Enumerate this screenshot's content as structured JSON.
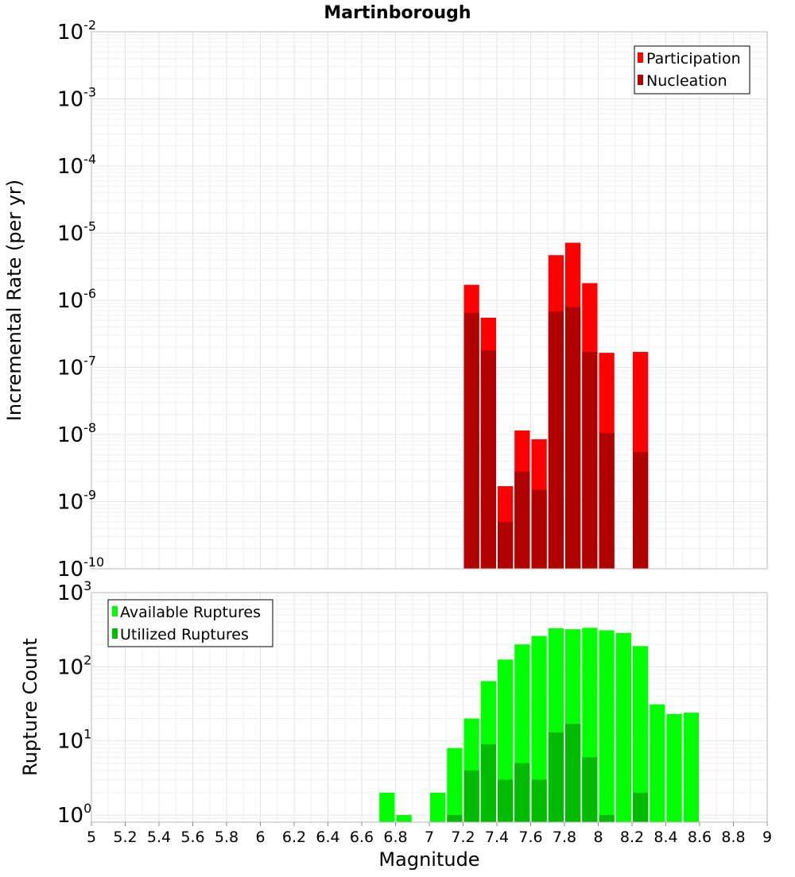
{
  "chart_data": [
    {
      "type": "bar",
      "title": "Martinborough",
      "ylabel": "Incremental Rate (per yr)",
      "xlabel": "",
      "xlim": [
        5,
        9
      ],
      "ylim": [
        1e-10,
        0.01
      ],
      "yscale": "log",
      "grid": true,
      "legend_position": "top-right",
      "colors": {
        "Participation": "#ff0000",
        "Nucleation": "#b00000"
      },
      "x": [
        7.25,
        7.35,
        7.45,
        7.55,
        7.65,
        7.75,
        7.85,
        7.95,
        8.05,
        8.25
      ],
      "series": [
        {
          "name": "Participation",
          "values": [
            1.7e-06,
            5.5e-07,
            1.7e-09,
            1.15e-08,
            8.5e-09,
            4.7e-06,
            7.2e-06,
            1.8e-06,
            1.65e-07,
            1.7e-07
          ]
        },
        {
          "name": "Nucleation",
          "values": [
            6.5e-07,
            1.8e-07,
            5e-10,
            2.8e-09,
            1.5e-09,
            6.8e-07,
            8e-07,
            1.7e-07,
            1.05e-08,
            5.5e-09
          ]
        }
      ],
      "y_ticks": [
        {
          "base": "10",
          "exp": "-2"
        },
        {
          "base": "10",
          "exp": "-3"
        },
        {
          "base": "10",
          "exp": "-4"
        },
        {
          "base": "10",
          "exp": "-5"
        },
        {
          "base": "10",
          "exp": "-6"
        },
        {
          "base": "10",
          "exp": "-7"
        },
        {
          "base": "10",
          "exp": "-8"
        },
        {
          "base": "10",
          "exp": "-9"
        },
        {
          "base": "10",
          "exp": "-10"
        }
      ]
    },
    {
      "type": "bar",
      "title": "",
      "ylabel": "Rupture Count",
      "xlabel": "Magnitude",
      "xlim": [
        5,
        9
      ],
      "ylim": [
        0.8,
        1000
      ],
      "yscale": "log",
      "grid": true,
      "legend_position": "top-left",
      "colors": {
        "Available Ruptures": "#00ff00",
        "Utilized Ruptures": "#00bb00"
      },
      "x": [
        6.75,
        6.85,
        7.05,
        7.15,
        7.25,
        7.35,
        7.45,
        7.55,
        7.65,
        7.75,
        7.85,
        7.95,
        8.05,
        8.15,
        8.25,
        8.35,
        8.45,
        8.55
      ],
      "series": [
        {
          "name": "Available Ruptures",
          "values": [
            2,
            1,
            2,
            8,
            20,
            64,
            125,
            200,
            260,
            330,
            320,
            335,
            310,
            285,
            190,
            31,
            23,
            24
          ]
        },
        {
          "name": "Utilized Ruptures",
          "values": [
            0,
            0,
            0,
            1,
            4,
            9,
            3,
            5,
            3,
            13,
            17,
            6,
            1,
            0,
            2,
            0,
            0,
            0
          ]
        }
      ],
      "x_ticks": [
        "5",
        "5.2",
        "5.4",
        "5.6",
        "5.8",
        "6",
        "6.2",
        "6.4",
        "6.6",
        "6.8",
        "7",
        "7.2",
        "7.4",
        "7.6",
        "7.8",
        "8",
        "8.2",
        "8.4",
        "8.6",
        "8.8",
        "9"
      ],
      "y_ticks": [
        {
          "base": "10",
          "exp": "3"
        },
        {
          "base": "10",
          "exp": "2"
        },
        {
          "base": "10",
          "exp": "1"
        },
        {
          "base": "10",
          "exp": "0"
        }
      ]
    }
  ]
}
